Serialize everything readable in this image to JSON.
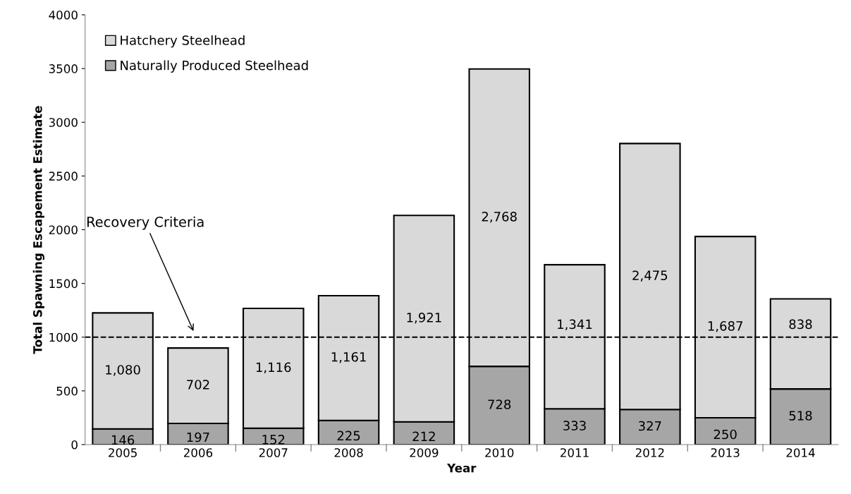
{
  "chart_data": {
    "type": "bar",
    "stacked": true,
    "xlabel": "Year",
    "ylabel": "Total Spawning Escapement Estimate",
    "categories": [
      "2005",
      "2006",
      "2007",
      "2008",
      "2009",
      "2010",
      "2011",
      "2012",
      "2013",
      "2014"
    ],
    "series": [
      {
        "name": "Naturally Produced Steelhead",
        "color": "#a6a6a6",
        "values": [
          146,
          197,
          152,
          225,
          212,
          728,
          333,
          327,
          250,
          518
        ],
        "value_labels": [
          "146",
          "197",
          "152",
          "225",
          "212",
          "728",
          "333",
          "327",
          "250",
          "518"
        ]
      },
      {
        "name": "Hatchery Steelhead",
        "color": "#d9d9d9",
        "values": [
          1080,
          702,
          1116,
          1161,
          1921,
          2768,
          1341,
          2475,
          1687,
          838
        ],
        "value_labels": [
          "1,080",
          "702",
          "1,116",
          "1,161",
          "1,921",
          "2,768",
          "1,341",
          "2,475",
          "1,687",
          "838"
        ]
      }
    ],
    "ylim": [
      0,
      4000
    ],
    "yticks": [
      0,
      500,
      1000,
      1500,
      2000,
      2500,
      3000,
      3500,
      4000
    ],
    "ref_lines": [
      {
        "axis": "y",
        "value": 1000,
        "color": "#000000",
        "line_style": "dashed"
      }
    ],
    "annotations": [
      "Recovery Criteria"
    ],
    "legend": "top left",
    "grid": false
  }
}
